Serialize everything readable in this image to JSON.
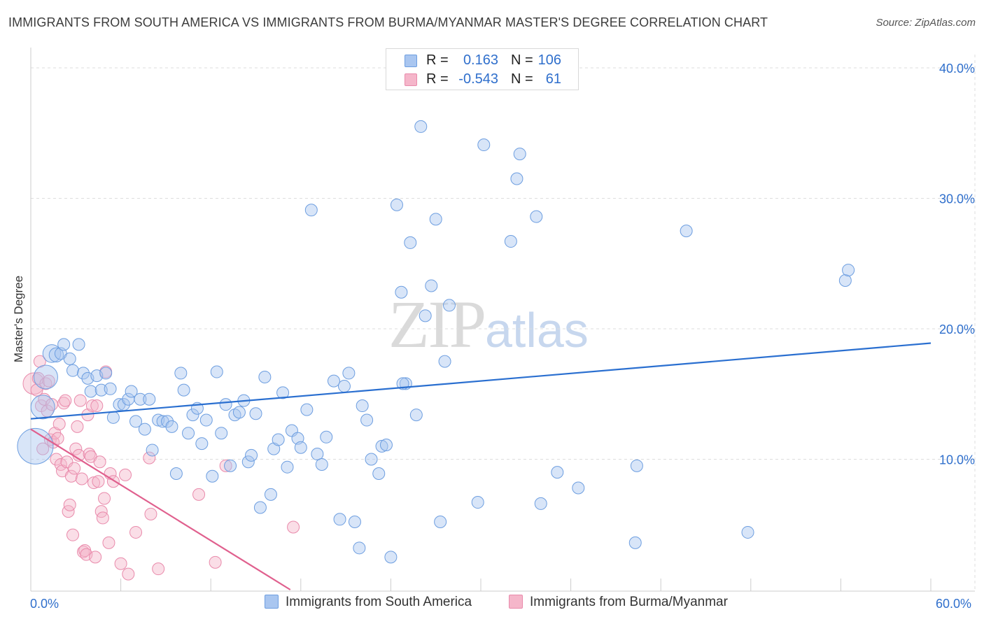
{
  "title": "IMMIGRANTS FROM SOUTH AMERICA VS IMMIGRANTS FROM BURMA/MYANMAR MASTER'S DEGREE CORRELATION CHART",
  "source": "Source: ZipAtlas.com",
  "watermark": {
    "zip": "ZIP",
    "atlas": "atlas"
  },
  "legend": {
    "r_label": "R =",
    "n_label": "N =",
    "series1_r": "0.163",
    "series1_n": "106",
    "series2_r": "-0.543",
    "series2_n": "61"
  },
  "x_axis_min_label": "0.0%",
  "x_axis_max_label": "60.0%",
  "colors": {
    "blue_fill": "#a9c6f0",
    "blue_stroke": "#6d9ee0",
    "blue_line": "#2a6fd0",
    "pink_fill": "#f5b6ca",
    "pink_stroke": "#e98aab",
    "pink_line": "#e0608e",
    "axis_text": "#2f6fcc",
    "grid": "#dddddd"
  },
  "chart_data": {
    "type": "scatter",
    "title": "IMMIGRANTS FROM SOUTH AMERICA VS IMMIGRANTS FROM BURMA/MYANMAR MASTER'S DEGREE CORRELATION CHART",
    "xlabel": "",
    "ylabel": "Master's Degree",
    "xlim": [
      0,
      60
    ],
    "ylim": [
      0,
      40
    ],
    "y_ticks": [
      10,
      20,
      30,
      40
    ],
    "y_tick_labels": [
      "10.0%",
      "20.0%",
      "30.0%",
      "40.0%"
    ],
    "grid": true,
    "legend_position": "top-center",
    "series": [
      {
        "name": "Immigrants from South America",
        "color": "#a9c6f0",
        "r": 0.163,
        "n": 106,
        "trend": {
          "x": [
            0,
            60
          ],
          "y": [
            13.1,
            18.9
          ]
        },
        "points": [
          [
            0.3,
            11.0,
            3
          ],
          [
            0.8,
            14.0,
            2
          ],
          [
            1.0,
            16.3,
            2
          ],
          [
            1.4,
            18.1,
            1.5
          ],
          [
            1.7,
            18.0,
            1.2
          ],
          [
            2.0,
            18.1,
            1
          ],
          [
            2.2,
            18.8,
            1
          ],
          [
            2.6,
            17.7,
            1
          ],
          [
            2.8,
            16.8,
            1
          ],
          [
            3.2,
            18.8,
            1
          ],
          [
            3.5,
            16.6,
            1
          ],
          [
            3.8,
            16.2,
            1
          ],
          [
            4.0,
            15.2,
            1
          ],
          [
            4.4,
            16.4,
            1
          ],
          [
            4.7,
            15.3,
            1
          ],
          [
            5.0,
            16.6,
            1
          ],
          [
            5.3,
            15.4,
            1
          ],
          [
            5.5,
            13.2,
            1
          ],
          [
            5.9,
            14.2,
            1
          ],
          [
            6.2,
            14.2,
            1
          ],
          [
            6.5,
            14.6,
            1
          ],
          [
            6.7,
            15.2,
            1
          ],
          [
            7.0,
            12.9,
            1
          ],
          [
            7.3,
            14.6,
            1
          ],
          [
            7.6,
            12.3,
            1
          ],
          [
            7.9,
            14.6,
            1
          ],
          [
            8.1,
            10.7,
            1
          ],
          [
            8.5,
            13.0,
            1
          ],
          [
            8.8,
            12.9,
            1
          ],
          [
            9.1,
            12.9,
            1
          ],
          [
            9.4,
            12.5,
            1
          ],
          [
            9.7,
            8.9,
            1
          ],
          [
            10.0,
            16.6,
            1
          ],
          [
            10.2,
            15.3,
            1
          ],
          [
            10.5,
            12.0,
            1
          ],
          [
            10.8,
            13.4,
            1
          ],
          [
            11.1,
            13.9,
            1
          ],
          [
            11.4,
            11.2,
            1
          ],
          [
            11.7,
            13.0,
            1
          ],
          [
            12.1,
            8.7,
            1
          ],
          [
            12.4,
            16.7,
            1
          ],
          [
            12.7,
            12.0,
            1
          ],
          [
            13.0,
            14.2,
            1
          ],
          [
            13.3,
            9.5,
            1
          ],
          [
            13.6,
            13.4,
            1
          ],
          [
            13.9,
            13.6,
            1
          ],
          [
            14.2,
            14.5,
            1
          ],
          [
            14.5,
            9.8,
            1
          ],
          [
            14.7,
            10.3,
            1
          ],
          [
            15.0,
            13.5,
            1
          ],
          [
            15.3,
            6.3,
            1
          ],
          [
            15.6,
            16.3,
            1
          ],
          [
            16.0,
            7.3,
            1
          ],
          [
            16.2,
            10.8,
            1
          ],
          [
            16.5,
            11.5,
            1
          ],
          [
            16.8,
            15.1,
            1
          ],
          [
            17.1,
            9.4,
            1
          ],
          [
            17.4,
            12.2,
            1
          ],
          [
            17.8,
            11.6,
            1
          ],
          [
            18.0,
            10.9,
            1
          ],
          [
            18.4,
            13.8,
            1
          ],
          [
            18.7,
            29.1,
            1
          ],
          [
            19.1,
            10.4,
            1
          ],
          [
            19.4,
            9.6,
            1
          ],
          [
            19.7,
            11.7,
            1
          ],
          [
            20.2,
            16.0,
            1
          ],
          [
            20.6,
            5.4,
            1
          ],
          [
            20.9,
            15.6,
            1
          ],
          [
            21.2,
            16.6,
            1
          ],
          [
            21.6,
            5.2,
            1
          ],
          [
            21.9,
            3.2,
            1
          ],
          [
            22.1,
            14.1,
            1
          ],
          [
            22.4,
            13.0,
            1
          ],
          [
            22.7,
            10.0,
            1
          ],
          [
            23.2,
            8.9,
            1
          ],
          [
            23.4,
            11.0,
            1
          ],
          [
            23.7,
            11.1,
            1
          ],
          [
            24.0,
            2.5,
            1
          ],
          [
            24.4,
            29.5,
            1
          ],
          [
            24.7,
            22.8,
            1
          ],
          [
            25.0,
            15.8,
            1
          ],
          [
            25.3,
            26.6,
            1
          ],
          [
            25.7,
            13.4,
            1
          ],
          [
            26.0,
            35.5,
            1
          ],
          [
            26.3,
            21.0,
            1
          ],
          [
            26.7,
            23.3,
            1
          ],
          [
            27.0,
            28.4,
            1
          ],
          [
            27.3,
            5.2,
            1
          ],
          [
            27.6,
            17.5,
            1
          ],
          [
            27.9,
            21.8,
            1
          ],
          [
            29.8,
            6.7,
            1
          ],
          [
            30.2,
            34.1,
            1
          ],
          [
            32.0,
            26.7,
            1
          ],
          [
            32.4,
            31.5,
            1
          ],
          [
            32.6,
            33.4,
            1
          ],
          [
            33.7,
            28.6,
            1
          ],
          [
            34.0,
            6.6,
            1
          ],
          [
            35.1,
            9.0,
            1
          ],
          [
            36.5,
            7.8,
            1
          ],
          [
            40.3,
            3.6,
            1
          ],
          [
            40.4,
            9.5,
            1
          ],
          [
            43.7,
            27.5,
            1
          ],
          [
            47.8,
            4.4,
            1
          ],
          [
            54.3,
            23.7,
            1
          ],
          [
            54.5,
            24.5,
            1
          ],
          [
            24.8,
            15.8,
            1
          ]
        ]
      },
      {
        "name": "Immigrants from Burma/Myanmar",
        "color": "#f5b6ca",
        "r": -0.543,
        "n": 61,
        "trend": {
          "x": [
            0,
            17.3
          ],
          "y": [
            12.3,
            0
          ]
        },
        "points": [
          [
            0.2,
            15.8,
            1.8
          ],
          [
            0.4,
            15.3,
            1
          ],
          [
            0.5,
            16.2,
            1
          ],
          [
            0.6,
            17.5,
            1
          ],
          [
            0.7,
            14.1,
            1
          ],
          [
            0.8,
            10.8,
            1
          ],
          [
            0.9,
            14.6,
            1
          ],
          [
            1.0,
            15.8,
            1
          ],
          [
            1.1,
            13.7,
            1
          ],
          [
            1.2,
            16.0,
            1
          ],
          [
            1.3,
            11.5,
            1
          ],
          [
            1.4,
            14.2,
            1
          ],
          [
            1.5,
            11.3,
            1
          ],
          [
            1.6,
            12.0,
            1
          ],
          [
            1.7,
            10.0,
            1
          ],
          [
            1.8,
            11.6,
            1
          ],
          [
            1.9,
            12.7,
            1
          ],
          [
            2.0,
            9.6,
            1
          ],
          [
            2.1,
            9.1,
            1
          ],
          [
            2.2,
            14.3,
            1
          ],
          [
            2.3,
            14.5,
            1
          ],
          [
            2.4,
            9.8,
            1
          ],
          [
            2.5,
            6.0,
            1
          ],
          [
            2.6,
            6.5,
            1
          ],
          [
            2.7,
            8.7,
            1
          ],
          [
            2.8,
            4.2,
            1
          ],
          [
            2.9,
            9.3,
            1
          ],
          [
            3.0,
            10.8,
            1
          ],
          [
            3.1,
            12.5,
            1
          ],
          [
            3.2,
            10.3,
            1
          ],
          [
            3.3,
            14.5,
            1
          ],
          [
            3.4,
            8.5,
            1
          ],
          [
            3.5,
            2.9,
            1
          ],
          [
            3.6,
            3.0,
            1
          ],
          [
            3.7,
            2.7,
            1
          ],
          [
            3.8,
            13.4,
            1
          ],
          [
            3.9,
            10.4,
            1
          ],
          [
            4.0,
            10.2,
            1
          ],
          [
            4.1,
            14.1,
            1
          ],
          [
            4.2,
            8.2,
            1
          ],
          [
            4.3,
            2.5,
            1
          ],
          [
            4.4,
            14.1,
            1
          ],
          [
            4.5,
            8.3,
            1
          ],
          [
            4.6,
            9.8,
            1
          ],
          [
            4.7,
            6.0,
            1
          ],
          [
            4.8,
            5.5,
            1
          ],
          [
            4.9,
            7.0,
            1
          ],
          [
            5.0,
            16.7,
            1
          ],
          [
            5.2,
            3.6,
            1
          ],
          [
            5.3,
            8.9,
            1
          ],
          [
            5.5,
            8.3,
            1
          ],
          [
            6.0,
            2.0,
            1
          ],
          [
            6.3,
            8.8,
            1
          ],
          [
            6.5,
            1.2,
            1
          ],
          [
            7.0,
            4.4,
            1
          ],
          [
            7.9,
            10.1,
            1
          ],
          [
            8.0,
            5.8,
            1
          ],
          [
            8.5,
            1.6,
            1
          ],
          [
            11.2,
            7.3,
            1
          ],
          [
            12.3,
            2.1,
            1
          ],
          [
            13.0,
            9.5,
            1
          ],
          [
            17.5,
            4.8,
            1
          ]
        ]
      }
    ]
  },
  "bottom_legend": {
    "series1": "Immigrants from South America",
    "series2": "Immigrants from Burma/Myanmar"
  }
}
